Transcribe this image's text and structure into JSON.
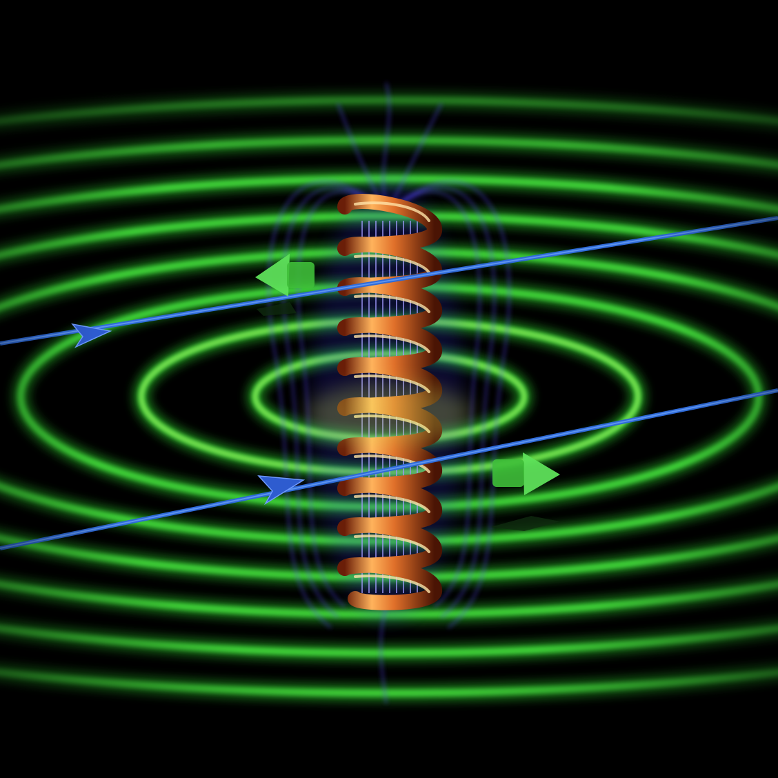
{
  "scene": {
    "subject": "solenoid-magnetic-field",
    "colors": {
      "background": "#000000",
      "ring": "#3fe03a",
      "ring_core": "#d8ff6a",
      "field_line": "#5a4dff",
      "wire": "#2e6ad8",
      "coil_light": "#ffb35c",
      "coil_dark": "#7a2a10",
      "arrow": "#5ee05a"
    },
    "icons": [
      "coil-icon",
      "arrow-icon"
    ]
  }
}
